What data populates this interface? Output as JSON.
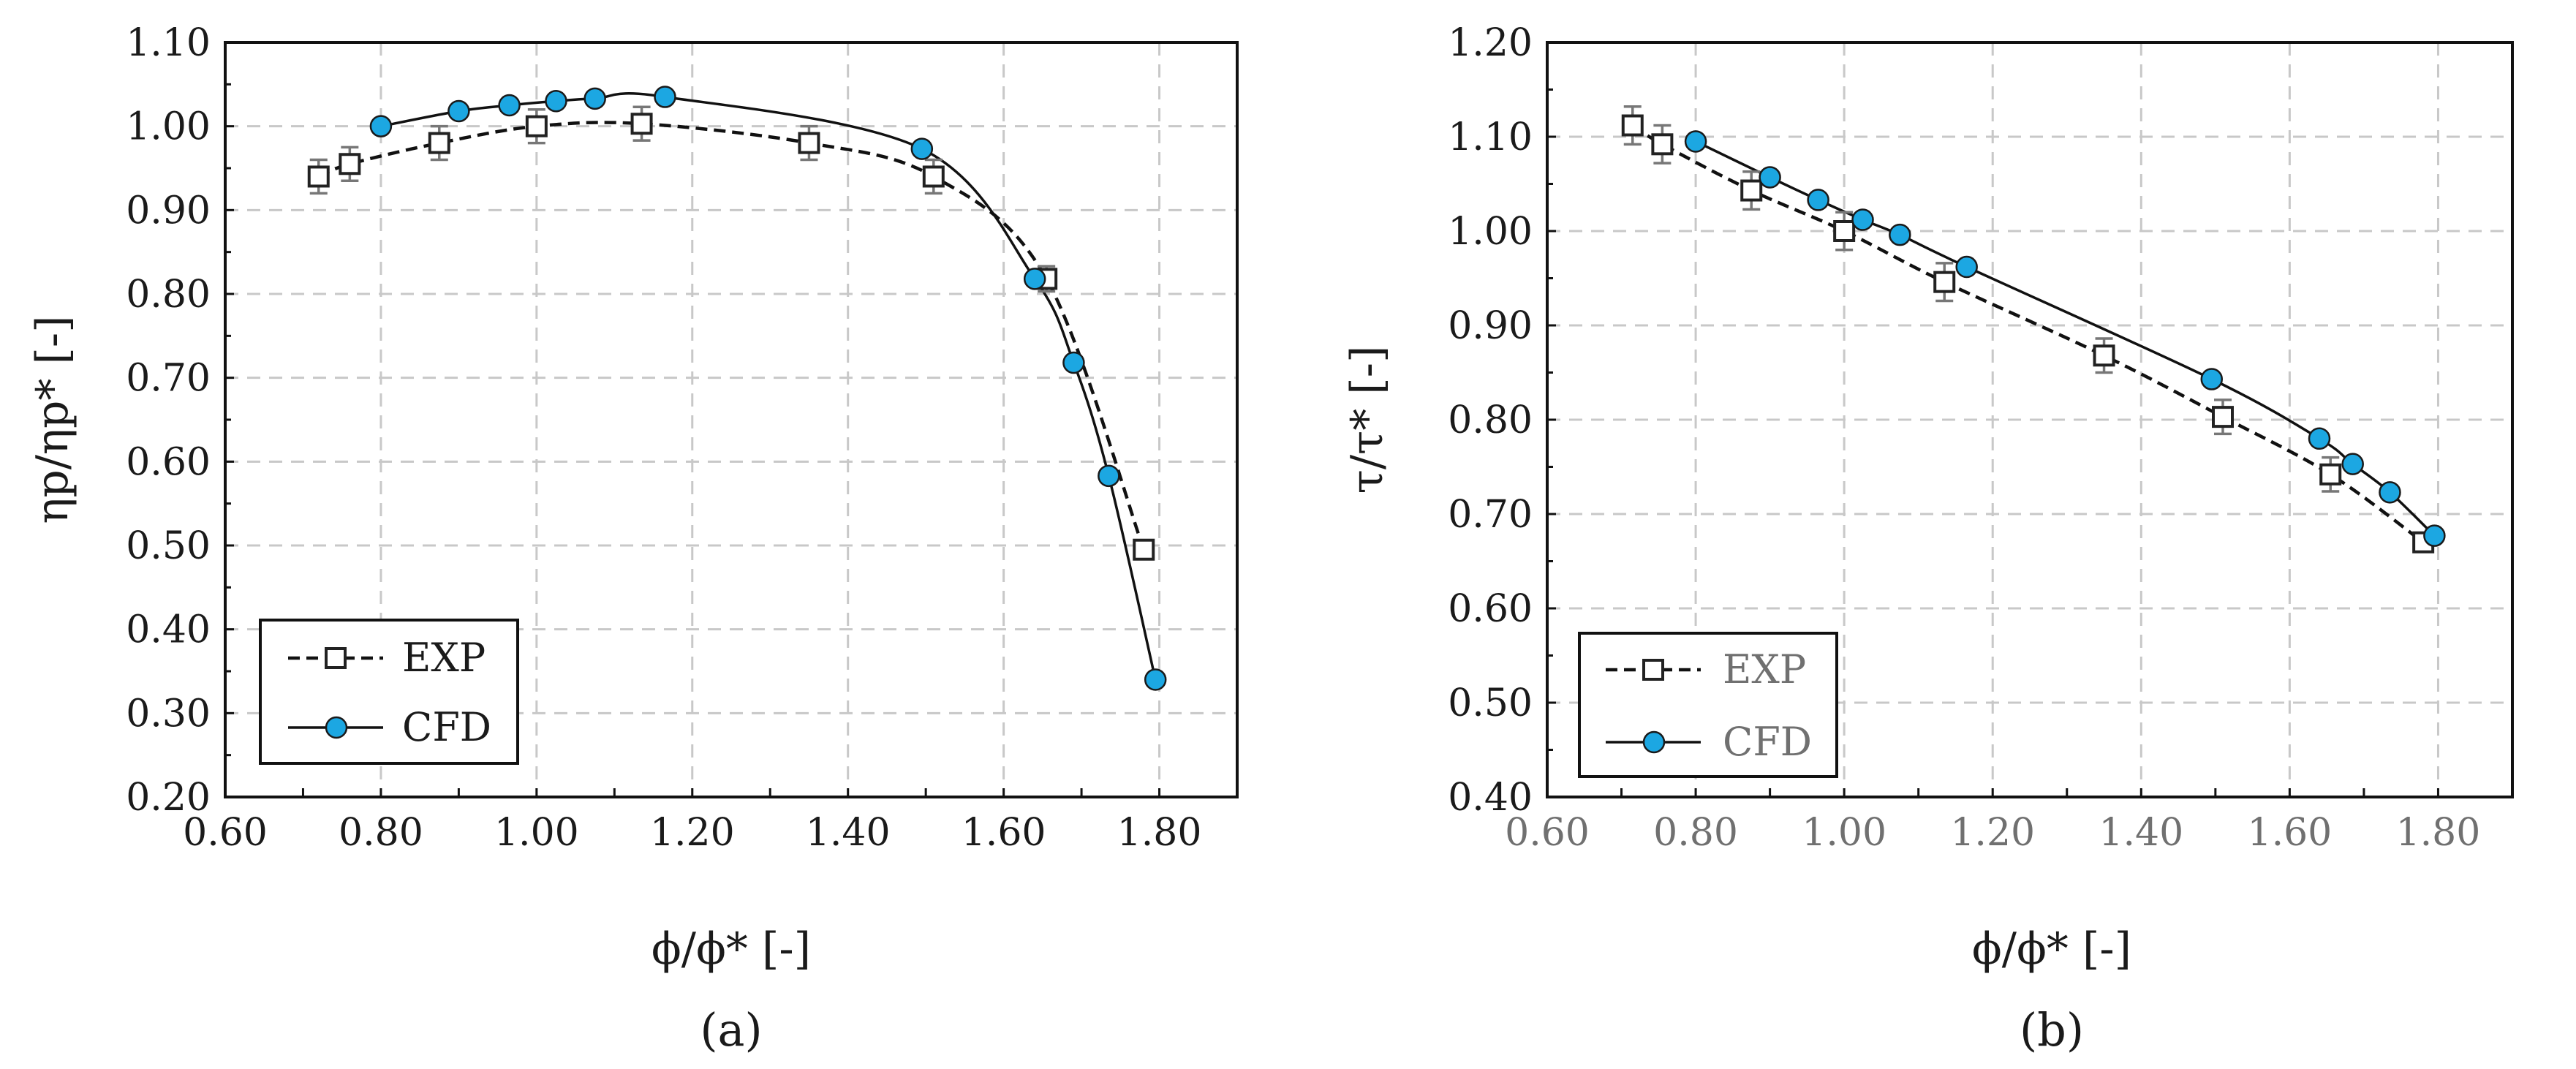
{
  "chart_data": [
    {
      "panel": "a",
      "caption": "(a)",
      "type": "line",
      "xlabel": "ϕ/ϕ* [-]",
      "ylabel": "ηp/ηp* [-]",
      "xlim": [
        0.6,
        1.9
      ],
      "ylim": [
        0.2,
        1.1
      ],
      "xticks": [
        "0.60",
        "0.80",
        "1.00",
        "1.20",
        "1.40",
        "1.60",
        "1.80"
      ],
      "yticks": [
        "0.20",
        "0.30",
        "0.40",
        "0.50",
        "0.60",
        "0.70",
        "0.80",
        "0.90",
        "1.00",
        "1.10"
      ],
      "grid": true,
      "legend_position": "bottom-left",
      "series": [
        {
          "name": "EXP",
          "style": "dashed-open-square",
          "x": [
            0.72,
            0.76,
            0.875,
            1.0,
            1.135,
            1.35,
            1.51,
            1.655,
            1.78
          ],
          "y": [
            0.94,
            0.955,
            0.98,
            1.0,
            1.003,
            0.98,
            0.94,
            0.818,
            0.495
          ],
          "err": [
            0.02,
            0.02,
            0.02,
            0.02,
            0.02,
            0.02,
            0.02,
            0.015,
            0.0
          ]
        },
        {
          "name": "CFD",
          "style": "solid-filled-circle",
          "x": [
            0.8,
            0.9,
            0.965,
            1.025,
            1.075,
            1.165,
            1.495,
            1.64,
            1.69,
            1.735,
            1.795
          ],
          "y": [
            1.0,
            1.018,
            1.025,
            1.03,
            1.033,
            1.035,
            0.973,
            0.818,
            0.718,
            0.583,
            0.34
          ]
        }
      ]
    },
    {
      "panel": "b",
      "caption": "(b)",
      "type": "line",
      "xlabel": "ϕ/ϕ* [-]",
      "ylabel": "τ/τ* [-]",
      "xlim": [
        0.6,
        1.9
      ],
      "ylim": [
        0.4,
        1.2
      ],
      "xticks": [
        "0.60",
        "0.80",
        "1.00",
        "1.20",
        "1.40",
        "1.60",
        "1.80"
      ],
      "yticks": [
        "0.40",
        "0.50",
        "0.60",
        "0.70",
        "0.80",
        "0.90",
        "1.00",
        "1.10",
        "1.20"
      ],
      "grid": true,
      "legend_position": "bottom-left",
      "series": [
        {
          "name": "EXP",
          "style": "dashed-open-square",
          "x": [
            0.715,
            0.755,
            0.875,
            1.0,
            1.135,
            1.35,
            1.51,
            1.655,
            1.78
          ],
          "y": [
            1.112,
            1.092,
            1.043,
            1.0,
            0.946,
            0.868,
            0.803,
            0.742,
            0.67
          ],
          "err": [
            0.02,
            0.02,
            0.02,
            0.02,
            0.02,
            0.018,
            0.018,
            0.018,
            0.01
          ]
        },
        {
          "name": "CFD",
          "style": "solid-filled-circle",
          "x": [
            0.8,
            0.9,
            0.965,
            1.025,
            1.075,
            1.165,
            1.495,
            1.64,
            1.685,
            1.735,
            1.795
          ],
          "y": [
            1.095,
            1.057,
            1.033,
            1.012,
            0.996,
            0.962,
            0.843,
            0.78,
            0.753,
            0.723,
            0.677
          ]
        }
      ]
    }
  ],
  "colors": {
    "cfd_fill": "#1ca7e2",
    "line": "#111111",
    "grid": "#c8c8c8",
    "tick_gray": "#707070"
  }
}
